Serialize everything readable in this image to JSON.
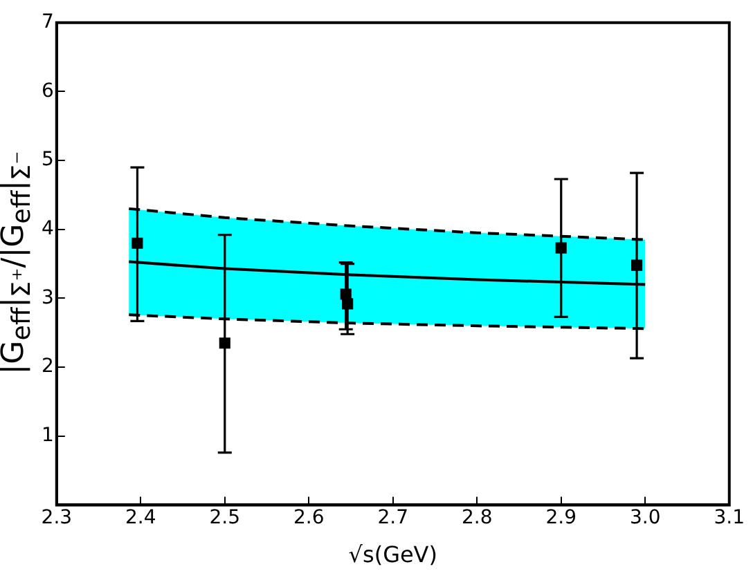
{
  "chart_data": {
    "type": "scatter",
    "xlabel": "√s(GeV)",
    "ylabel": "|G$_{eff}$|$_{Σ⁺}$/|G$_{eff}$|$_{Σ⁻}$",
    "series": [
      {
        "type": "line",
        "color": "#000000",
        "line_style": "solid",
        "marker": "none",
        "x": [
          2.386,
          2.5,
          2.65,
          2.8,
          3.0
        ],
        "values": [
          3.53,
          3.43,
          3.34,
          3.27,
          3.2
        ],
        "lower": [
          2.76,
          2.7,
          2.64,
          2.6,
          2.56
        ],
        "upper": [
          4.3,
          4.17,
          4.05,
          3.95,
          3.85
        ]
      },
      {
        "type": "line",
        "color": "#000000",
        "line_style": "dashed",
        "marker": "none",
        "x": [
          2.386,
          2.5,
          2.65,
          2.8,
          3.0
        ],
        "values": [
          4.3,
          4.17,
          4.05,
          3.95,
          3.85
        ]
      },
      {
        "type": "line",
        "color": "#000000",
        "line_style": "dashed",
        "marker": "none",
        "x": [
          2.386,
          2.5,
          2.65,
          2.8,
          3.0
        ],
        "values": [
          2.76,
          2.7,
          2.64,
          2.6,
          2.56
        ]
      },
      {
        "type": "scatter",
        "color": "#000000",
        "marker": "square",
        "x": [
          2.396,
          2.5,
          2.644,
          2.646,
          2.9,
          2.99
        ],
        "values": [
          3.8,
          2.35,
          3.06,
          2.92,
          3.73,
          3.48
        ],
        "errors": [
          [
            2.67,
            4.9
          ],
          [
            0.76,
            3.92
          ],
          [
            2.55,
            3.52
          ],
          [
            2.48,
            3.5
          ],
          [
            2.73,
            4.73
          ],
          [
            2.13,
            4.82
          ]
        ]
      }
    ],
    "xlim": [
      2.3,
      3.1
    ],
    "xticks": [
      2.3,
      2.4,
      2.5,
      2.6,
      2.7,
      2.8,
      2.9,
      {
        "value": 3,
        "label": "3.0"
      },
      3.1
    ],
    "ylim": [
      0,
      7
    ],
    "yticks": [
      1,
      2,
      3,
      4,
      5,
      6,
      7
    ],
    "grid": false,
    "legend": false
  }
}
